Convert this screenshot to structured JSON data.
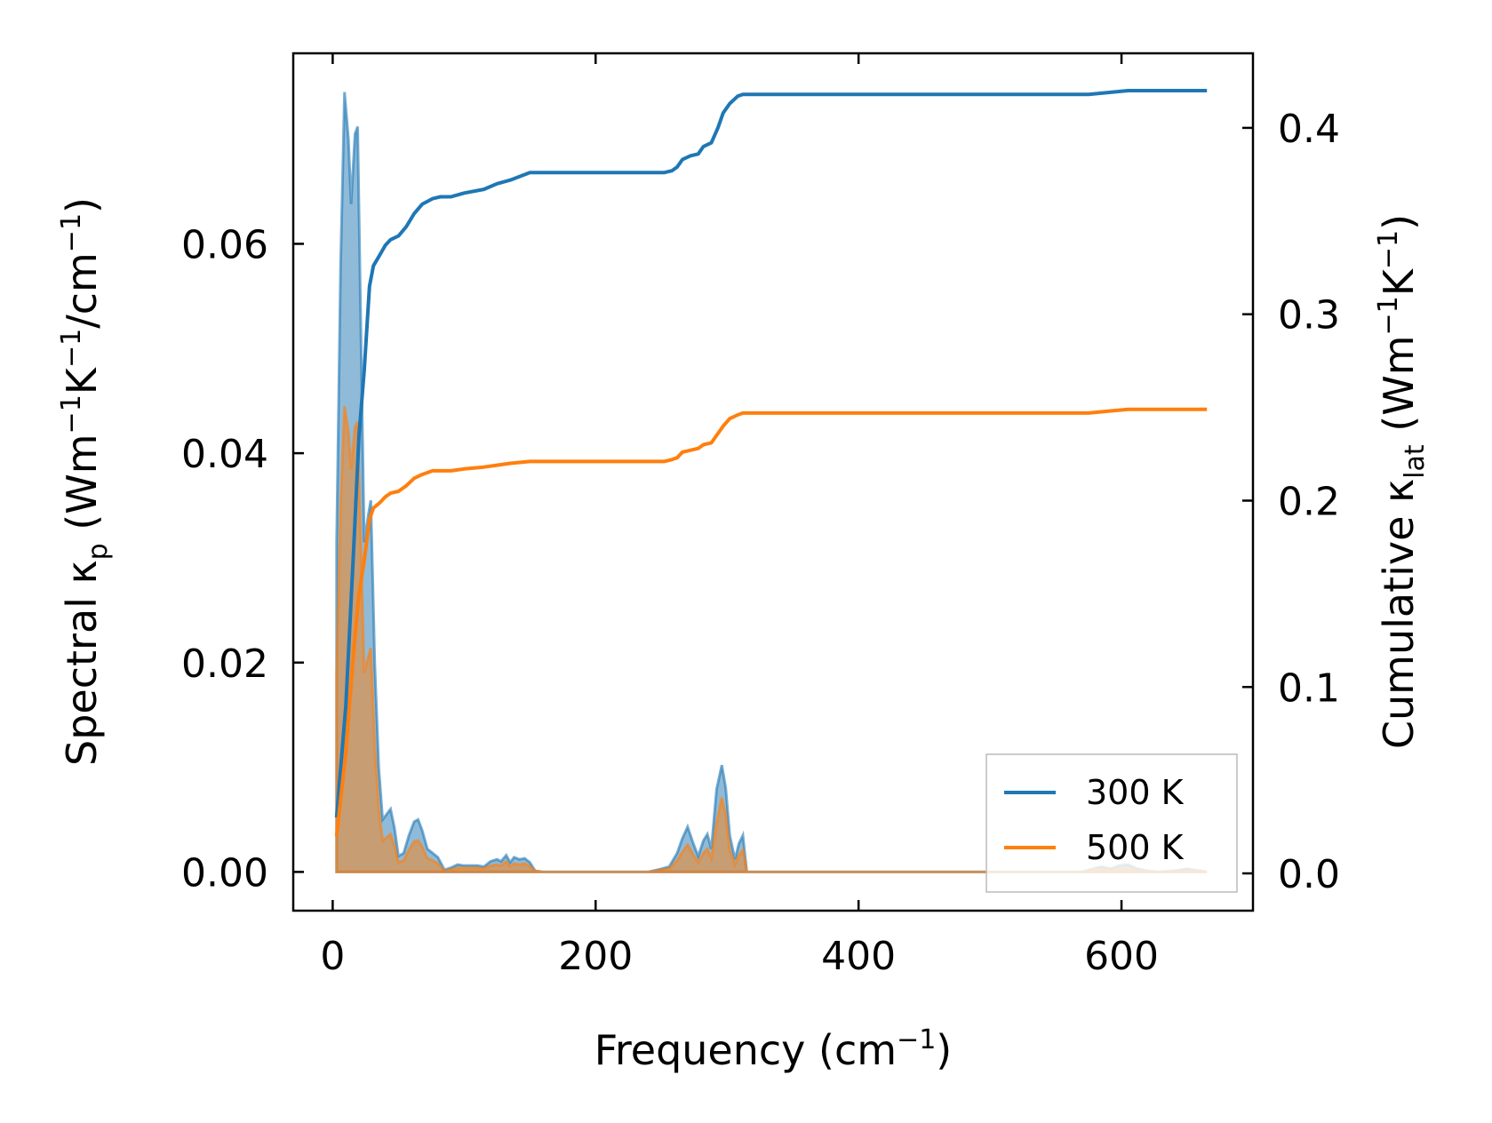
{
  "chart_data": {
    "type": "line",
    "xlabel": "Frequency (cm",
    "xlabel_sup": "−1",
    "xlabel_tail": ")",
    "ylabel_left": {
      "p1": "Spectral κ",
      "sub1": "p",
      "p2": " (Wm",
      "sup1": "−1",
      "p3": "K",
      "sup2": "−1",
      "p4": "/cm",
      "sup3": "−1",
      "p5": ")"
    },
    "ylabel_right": {
      "p1": "Cumulative κ",
      "sub1": "lat",
      "p2": " (Wm",
      "sup1": "−1",
      "p3": "K",
      "sup2": "−1",
      "p4": ")"
    },
    "xlim": [
      -30,
      700
    ],
    "ylim_left": [
      -0.0037,
      0.0782
    ],
    "ylim_right": [
      -0.02,
      0.44
    ],
    "x_ticks": [
      0,
      200,
      400,
      600
    ],
    "x_tick_labels": [
      "0",
      "200",
      "400",
      "600"
    ],
    "y_left_ticks": [
      0.0,
      0.02,
      0.04,
      0.06
    ],
    "y_left_tick_labels": [
      "0.00",
      "0.02",
      "0.04",
      "0.06"
    ],
    "y_right_ticks": [
      0.0,
      0.1,
      0.2,
      0.3,
      0.4
    ],
    "y_right_tick_labels": [
      "0.0",
      "0.1",
      "0.2",
      "0.3",
      "0.4"
    ],
    "legend": {
      "placement": "lower-right",
      "entries": [
        {
          "label": "300 K",
          "color": "#1f77b4"
        },
        {
          "label": "500 K",
          "color": "#ff7f0e"
        }
      ]
    },
    "series": [
      {
        "name": "300 K",
        "color": "#1f77b4",
        "spectral": [
          [
            3,
            0.0315
          ],
          [
            6,
            0.058
          ],
          [
            9,
            0.0745
          ],
          [
            12,
            0.07
          ],
          [
            14,
            0.0638
          ],
          [
            17,
            0.0705
          ],
          [
            19,
            0.0712
          ],
          [
            21,
            0.055
          ],
          [
            24,
            0.0315
          ],
          [
            27,
            0.034
          ],
          [
            29,
            0.0355
          ],
          [
            32,
            0.02
          ],
          [
            35,
            0.01
          ],
          [
            38,
            0.005
          ],
          [
            41,
            0.0055
          ],
          [
            44,
            0.006
          ],
          [
            47,
            0.0042
          ],
          [
            50,
            0.0015
          ],
          [
            54,
            0.0018
          ],
          [
            58,
            0.0035
          ],
          [
            62,
            0.0048
          ],
          [
            65,
            0.005
          ],
          [
            68,
            0.004
          ],
          [
            72,
            0.0022
          ],
          [
            76,
            0.0018
          ],
          [
            80,
            0.0014
          ],
          [
            85,
            0.0002
          ],
          [
            90,
            0.0004
          ],
          [
            95,
            0.0007
          ],
          [
            100,
            0.0006
          ],
          [
            110,
            0.0006
          ],
          [
            115,
            0.0005
          ],
          [
            120,
            0.001
          ],
          [
            125,
            0.0012
          ],
          [
            128,
            0.001
          ],
          [
            132,
            0.0016
          ],
          [
            135,
            0.0009
          ],
          [
            138,
            0.0014
          ],
          [
            142,
            0.0012
          ],
          [
            146,
            0.0013
          ],
          [
            150,
            0.0009
          ],
          [
            154,
            0.0001
          ],
          [
            160,
            0.0
          ],
          [
            200,
            0.0
          ],
          [
            240,
            0.0
          ],
          [
            250,
            0.0003
          ],
          [
            256,
            0.0005
          ],
          [
            262,
            0.0018
          ],
          [
            266,
            0.0032
          ],
          [
            270,
            0.0043
          ],
          [
            274,
            0.0028
          ],
          [
            278,
            0.0015
          ],
          [
            282,
            0.003
          ],
          [
            285,
            0.0036
          ],
          [
            288,
            0.0022
          ],
          [
            292,
            0.0079
          ],
          [
            296,
            0.0102
          ],
          [
            299,
            0.008
          ],
          [
            302,
            0.0035
          ],
          [
            306,
            0.0012
          ],
          [
            309,
            0.0027
          ],
          [
            312,
            0.0035
          ],
          [
            315,
            0.0
          ],
          [
            330,
            0.0
          ],
          [
            500,
            0.0
          ],
          [
            570,
            0.0
          ],
          [
            578,
            0.0003
          ],
          [
            585,
            0.0005
          ],
          [
            592,
            0.0003
          ],
          [
            598,
            0.0006
          ],
          [
            605,
            0.0007
          ],
          [
            612,
            0.0003
          ],
          [
            620,
            0.0001
          ],
          [
            628,
            0.0
          ],
          [
            640,
            0.0001
          ],
          [
            650,
            0.0003
          ],
          [
            665,
            0.0
          ]
        ],
        "cumulative": [
          [
            3,
            0.03
          ],
          [
            10,
            0.09
          ],
          [
            16,
            0.175
          ],
          [
            20,
            0.235
          ],
          [
            24,
            0.27
          ],
          [
            28,
            0.315
          ],
          [
            31,
            0.326
          ],
          [
            36,
            0.332
          ],
          [
            40,
            0.337
          ],
          [
            44,
            0.34
          ],
          [
            50,
            0.342
          ],
          [
            56,
            0.347
          ],
          [
            62,
            0.354
          ],
          [
            68,
            0.359
          ],
          [
            76,
            0.362
          ],
          [
            82,
            0.363
          ],
          [
            90,
            0.363
          ],
          [
            100,
            0.365
          ],
          [
            115,
            0.367
          ],
          [
            125,
            0.37
          ],
          [
            135,
            0.372
          ],
          [
            150,
            0.376
          ],
          [
            160,
            0.376
          ],
          [
            200,
            0.376
          ],
          [
            240,
            0.376
          ],
          [
            252,
            0.376
          ],
          [
            258,
            0.377
          ],
          [
            262,
            0.379
          ],
          [
            266,
            0.383
          ],
          [
            272,
            0.385
          ],
          [
            278,
            0.386
          ],
          [
            282,
            0.39
          ],
          [
            288,
            0.392
          ],
          [
            293,
            0.4
          ],
          [
            297,
            0.408
          ],
          [
            302,
            0.413
          ],
          [
            308,
            0.417
          ],
          [
            312,
            0.418
          ],
          [
            400,
            0.418
          ],
          [
            500,
            0.418
          ],
          [
            575,
            0.418
          ],
          [
            590,
            0.419
          ],
          [
            605,
            0.42
          ],
          [
            620,
            0.42
          ],
          [
            665,
            0.42
          ]
        ]
      },
      {
        "name": "500 K",
        "color": "#ff7f0e",
        "spectral": [
          [
            3,
            0.019
          ],
          [
            6,
            0.035
          ],
          [
            9,
            0.0445
          ],
          [
            12,
            0.042
          ],
          [
            14,
            0.0385
          ],
          [
            17,
            0.0425
          ],
          [
            19,
            0.043
          ],
          [
            21,
            0.033
          ],
          [
            24,
            0.019
          ],
          [
            27,
            0.0205
          ],
          [
            29,
            0.0214
          ],
          [
            32,
            0.012
          ],
          [
            35,
            0.006
          ],
          [
            38,
            0.003
          ],
          [
            41,
            0.0033
          ],
          [
            44,
            0.0036
          ],
          [
            47,
            0.0025
          ],
          [
            50,
            0.0009
          ],
          [
            54,
            0.0011
          ],
          [
            58,
            0.0021
          ],
          [
            62,
            0.0029
          ],
          [
            65,
            0.003
          ],
          [
            68,
            0.0024
          ],
          [
            72,
            0.0013
          ],
          [
            76,
            0.0011
          ],
          [
            80,
            0.0008
          ],
          [
            85,
            0.0001
          ],
          [
            90,
            0.0002
          ],
          [
            95,
            0.0004
          ],
          [
            100,
            0.0004
          ],
          [
            110,
            0.0004
          ],
          [
            115,
            0.0003
          ],
          [
            120,
            0.0006
          ],
          [
            125,
            0.0007
          ],
          [
            128,
            0.0006
          ],
          [
            132,
            0.001
          ],
          [
            135,
            0.0005
          ],
          [
            138,
            0.0008
          ],
          [
            142,
            0.0007
          ],
          [
            146,
            0.0008
          ],
          [
            150,
            0.0005
          ],
          [
            154,
            0.0001
          ],
          [
            160,
            0.0
          ],
          [
            200,
            0.0
          ],
          [
            240,
            0.0
          ],
          [
            250,
            0.0002
          ],
          [
            256,
            0.0003
          ],
          [
            262,
            0.0011
          ],
          [
            266,
            0.0019
          ],
          [
            270,
            0.0026
          ],
          [
            274,
            0.0017
          ],
          [
            278,
            0.0009
          ],
          [
            282,
            0.0018
          ],
          [
            285,
            0.0022
          ],
          [
            288,
            0.0013
          ],
          [
            292,
            0.0047
          ],
          [
            296,
            0.0071
          ],
          [
            299,
            0.0055
          ],
          [
            302,
            0.0021
          ],
          [
            306,
            0.0007
          ],
          [
            309,
            0.0016
          ],
          [
            312,
            0.0021
          ],
          [
            315,
            0.0
          ],
          [
            330,
            0.0
          ],
          [
            500,
            0.0
          ],
          [
            570,
            0.0
          ],
          [
            578,
            0.0002
          ],
          [
            585,
            0.0003
          ],
          [
            592,
            0.0002
          ],
          [
            598,
            0.0004
          ],
          [
            605,
            0.0004
          ],
          [
            612,
            0.0002
          ],
          [
            620,
            0.0001
          ],
          [
            628,
            0.0
          ],
          [
            640,
            0.0001
          ],
          [
            650,
            0.0002
          ],
          [
            665,
            0.0
          ]
        ],
        "cumulative": [
          [
            3,
            0.02
          ],
          [
            10,
            0.065
          ],
          [
            16,
            0.12
          ],
          [
            20,
            0.15
          ],
          [
            24,
            0.168
          ],
          [
            28,
            0.19
          ],
          [
            31,
            0.196
          ],
          [
            36,
            0.199
          ],
          [
            40,
            0.202
          ],
          [
            44,
            0.204
          ],
          [
            50,
            0.205
          ],
          [
            56,
            0.208
          ],
          [
            62,
            0.212
          ],
          [
            68,
            0.214
          ],
          [
            76,
            0.216
          ],
          [
            82,
            0.216
          ],
          [
            90,
            0.216
          ],
          [
            100,
            0.217
          ],
          [
            115,
            0.218
          ],
          [
            125,
            0.219
          ],
          [
            135,
            0.22
          ],
          [
            150,
            0.221
          ],
          [
            160,
            0.221
          ],
          [
            200,
            0.221
          ],
          [
            240,
            0.221
          ],
          [
            252,
            0.221
          ],
          [
            258,
            0.222
          ],
          [
            262,
            0.223
          ],
          [
            266,
            0.226
          ],
          [
            272,
            0.227
          ],
          [
            278,
            0.228
          ],
          [
            282,
            0.23
          ],
          [
            288,
            0.231
          ],
          [
            293,
            0.236
          ],
          [
            297,
            0.24
          ],
          [
            302,
            0.244
          ],
          [
            308,
            0.246
          ],
          [
            312,
            0.247
          ],
          [
            400,
            0.247
          ],
          [
            500,
            0.247
          ],
          [
            575,
            0.247
          ],
          [
            590,
            0.248
          ],
          [
            605,
            0.249
          ],
          [
            620,
            0.249
          ],
          [
            665,
            0.249
          ]
        ]
      }
    ]
  }
}
